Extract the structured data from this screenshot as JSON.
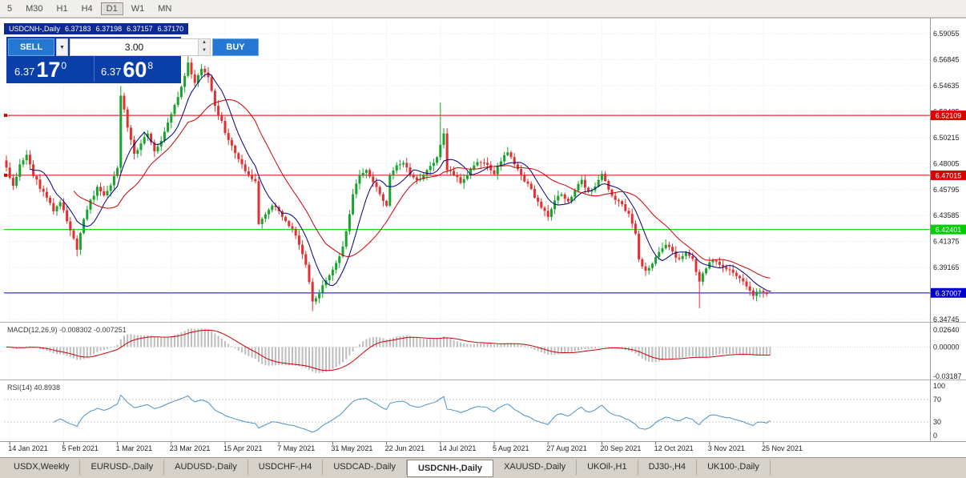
{
  "toolbar": {
    "timeframes": [
      {
        "label": "5",
        "active": false
      },
      {
        "label": "M30",
        "active": false
      },
      {
        "label": "H1",
        "active": false
      },
      {
        "label": "H4",
        "active": false
      },
      {
        "label": "D1",
        "active": true
      },
      {
        "label": "W1",
        "active": false
      },
      {
        "label": "MN",
        "active": false
      }
    ]
  },
  "trade_panel": {
    "sell_label": "SELL",
    "buy_label": "BUY",
    "volume": "3.00",
    "dropdown_glyph": "▼",
    "spin_up_glyph": "▲",
    "spin_down_glyph": "▼",
    "sell_price_major": "6.37",
    "sell_price_pips": "17",
    "sell_price_sup": "0",
    "buy_price_major": "6.37",
    "buy_price_pips": "60",
    "buy_price_sup": "8"
  },
  "bottom_tabs": [
    {
      "label": "USDX,Weekly",
      "active": false
    },
    {
      "label": "EURUSD-,Daily",
      "active": false
    },
    {
      "label": "AUDUSD-,Daily",
      "active": false
    },
    {
      "label": "USDCHF-,H4",
      "active": false
    },
    {
      "label": "USDCAD-,Daily",
      "active": false
    },
    {
      "label": "USDCNH-,Daily",
      "active": true
    },
    {
      "label": "XAUUSD-,Daily",
      "active": false
    },
    {
      "label": "UKOil-,H1",
      "active": false
    },
    {
      "label": "DJ30-,H4",
      "active": false
    },
    {
      "label": "UK100-,Daily",
      "active": false
    }
  ],
  "colors": {
    "up": "#18a32c",
    "down": "#e03030",
    "ma_fast": "#000080",
    "ma_slow": "#cc0000",
    "macd_hist": "#bdbdbd",
    "macd_signal": "#cc0000",
    "rsi_line": "#4a92c8",
    "grid": "#e7e7e7",
    "axis_text": "#222222",
    "panel_label": "#3c3c3c"
  },
  "chart_data": {
    "type": "candlestick",
    "symbol_display": "USDCNH-,Daily",
    "symbol": "USDCNH",
    "timeframe": "Daily",
    "ohlc_display": {
      "open": "6.37183",
      "high": "6.37198",
      "low": "6.37157",
      "close": "6.37170"
    },
    "ohlc_last": {
      "open": 6.37183,
      "high": 6.37198,
      "low": 6.37157,
      "close": 6.3717
    },
    "count": 228,
    "candle_step": 4.2,
    "price_range": [
      6.3468,
      6.6015
    ],
    "price_axis_values": [
      6.59055,
      6.56845,
      6.54635,
      6.52425,
      6.50215,
      6.48005,
      6.45795,
      6.43585,
      6.41375,
      6.39165,
      6.36955,
      6.34745
    ],
    "hlines": [
      {
        "value": 6.52109,
        "label": "6.52109",
        "color": "#dd0000",
        "handle": true
      },
      {
        "value": 6.47015,
        "label": "6.47015",
        "color": "#dd0000",
        "handle": true
      },
      {
        "value": 6.42401,
        "label": "6.42401",
        "color": "#00cc00",
        "handle": false
      },
      {
        "value": 6.37007,
        "label": "6.37007",
        "color": "#0000cc",
        "handle": false
      }
    ],
    "moving_averages": [
      {
        "type": "sma",
        "period": 8,
        "color": "#000080"
      },
      {
        "type": "sma",
        "period": 21,
        "color": "#cc0000"
      }
    ],
    "indicators": {
      "macd": {
        "label": "MACD(12,26,9)",
        "value_main": "-0.008302",
        "value_signal": "-0.007251",
        "fast": 12,
        "slow": 26,
        "signal": 9,
        "axis_labels": [
          "0.02640",
          "0.00000",
          "-0.03187"
        ]
      },
      "rsi": {
        "label": "RSI(14)",
        "value": "40.8938",
        "period": 14,
        "axis_labels": [
          "100",
          "70",
          "30",
          "0"
        ],
        "levels": [
          70,
          30
        ]
      }
    },
    "date_labels": [
      "14 Jan 2021",
      "5 Feb 2021",
      "1 Mar 2021",
      "23 Mar 2021",
      "15 Apr 2021",
      "7 May 2021",
      "31 May 2021",
      "22 Jun 2021",
      "14 Jul 2021",
      "5 Aug 2021",
      "27 Aug 2021",
      "20 Sep 2021",
      "12 Oct 2021",
      "3 Nov 2021",
      "25 Nov 2021"
    ],
    "date_tick_indices": [
      1,
      17,
      33,
      49,
      65,
      81,
      97,
      113,
      129,
      145,
      161,
      177,
      193,
      209,
      225
    ],
    "keyframes": [
      [
        0,
        6.476
      ],
      [
        2,
        6.462
      ],
      [
        4,
        6.478
      ],
      [
        6,
        6.488
      ],
      [
        8,
        6.47
      ],
      [
        10,
        6.46
      ],
      [
        12,
        6.452
      ],
      [
        14,
        6.44
      ],
      [
        16,
        6.448
      ],
      [
        18,
        6.43
      ],
      [
        21,
        6.408
      ],
      [
        23,
        6.434
      ],
      [
        25,
        6.448
      ],
      [
        27,
        6.46
      ],
      [
        29,
        6.452
      ],
      [
        31,
        6.462
      ],
      [
        33,
        6.476
      ],
      [
        34,
        6.538
      ],
      [
        36,
        6.512
      ],
      [
        38,
        6.488
      ],
      [
        40,
        6.498
      ],
      [
        42,
        6.506
      ],
      [
        44,
        6.49
      ],
      [
        46,
        6.5
      ],
      [
        48,
        6.516
      ],
      [
        50,
        6.53
      ],
      [
        52,
        6.546
      ],
      [
        54,
        6.565
      ],
      [
        56,
        6.549
      ],
      [
        58,
        6.562
      ],
      [
        60,
        6.553
      ],
      [
        62,
        6.53
      ],
      [
        64,
        6.515
      ],
      [
        66,
        6.5
      ],
      [
        68,
        6.49
      ],
      [
        70,
        6.478
      ],
      [
        72,
        6.47
      ],
      [
        74,
        6.466
      ],
      [
        75,
        6.43
      ],
      [
        77,
        6.436
      ],
      [
        79,
        6.444
      ],
      [
        81,
        6.44
      ],
      [
        83,
        6.43
      ],
      [
        85,
        6.426
      ],
      [
        87,
        6.412
      ],
      [
        89,
        6.395
      ],
      [
        91,
        6.363
      ],
      [
        93,
        6.37
      ],
      [
        95,
        6.382
      ],
      [
        97,
        6.39
      ],
      [
        99,
        6.4
      ],
      [
        101,
        6.422
      ],
      [
        103,
        6.455
      ],
      [
        105,
        6.47
      ],
      [
        107,
        6.475
      ],
      [
        109,
        6.465
      ],
      [
        111,
        6.455
      ],
      [
        113,
        6.444
      ],
      [
        114,
        6.47
      ],
      [
        116,
        6.478
      ],
      [
        118,
        6.482
      ],
      [
        120,
        6.472
      ],
      [
        122,
        6.465
      ],
      [
        124,
        6.47
      ],
      [
        126,
        6.478
      ],
      [
        128,
        6.485
      ],
      [
        130,
        6.505
      ],
      [
        131,
        6.475
      ],
      [
        133,
        6.47
      ],
      [
        135,
        6.465
      ],
      [
        137,
        6.47
      ],
      [
        139,
        6.478
      ],
      [
        141,
        6.482
      ],
      [
        143,
        6.478
      ],
      [
        145,
        6.472
      ],
      [
        147,
        6.482
      ],
      [
        149,
        6.49
      ],
      [
        151,
        6.48
      ],
      [
        153,
        6.47
      ],
      [
        155,
        6.462
      ],
      [
        157,
        6.452
      ],
      [
        159,
        6.444
      ],
      [
        161,
        6.436
      ],
      [
        163,
        6.448
      ],
      [
        165,
        6.455
      ],
      [
        167,
        6.448
      ],
      [
        169,
        6.458
      ],
      [
        171,
        6.465
      ],
      [
        173,
        6.455
      ],
      [
        175,
        6.462
      ],
      [
        177,
        6.47
      ],
      [
        179,
        6.458
      ],
      [
        181,
        6.45
      ],
      [
        183,
        6.444
      ],
      [
        185,
        6.436
      ],
      [
        187,
        6.42
      ],
      [
        188,
        6.398
      ],
      [
        190,
        6.388
      ],
      [
        192,
        6.395
      ],
      [
        194,
        6.405
      ],
      [
        196,
        6.412
      ],
      [
        198,
        6.405
      ],
      [
        200,
        6.398
      ],
      [
        202,
        6.404
      ],
      [
        204,
        6.398
      ],
      [
        206,
        6.38
      ],
      [
        208,
        6.392
      ],
      [
        210,
        6.398
      ],
      [
        212,
        6.395
      ],
      [
        214,
        6.39
      ],
      [
        216,
        6.388
      ],
      [
        218,
        6.382
      ],
      [
        220,
        6.375
      ],
      [
        222,
        6.368
      ],
      [
        224,
        6.372
      ],
      [
        226,
        6.37
      ],
      [
        227,
        6.3717
      ]
    ],
    "wick_overrides": {
      "21": {
        "low": 6.401
      },
      "34": {
        "high": 6.546
      },
      "54": {
        "high": 6.5855
      },
      "91": {
        "low": 6.3545
      },
      "129": {
        "high": 6.532
      },
      "206": {
        "low": 6.357
      }
    }
  }
}
